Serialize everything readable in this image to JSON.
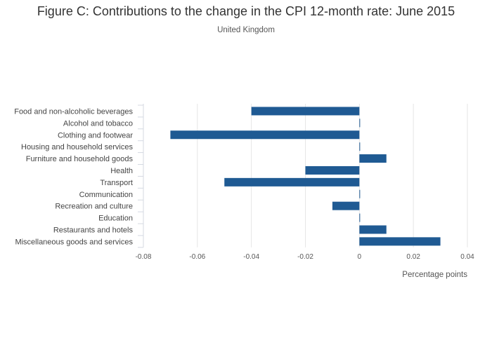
{
  "title": "Figure C: Contributions to the change in the CPI 12-month rate: June 2015",
  "subtitle": "United Kingdom",
  "colors": {
    "bar": "#1f5a93",
    "grid": "#e6e6e6",
    "axis": "#d4d9e2"
  },
  "chart_data": {
    "type": "bar",
    "orientation": "horizontal",
    "categories": [
      "Food and non-alcoholic beverages",
      "Alcohol and tobacco",
      "Clothing and footwear",
      "Housing and household services",
      "Furniture and household goods",
      "Health",
      "Transport",
      "Communication",
      "Recreation and culture",
      "Education",
      "Restaurants and hotels",
      "Miscellaneous goods and services"
    ],
    "values": [
      -0.04,
      0,
      -0.07,
      0,
      0.01,
      -0.02,
      -0.05,
      0,
      -0.01,
      0,
      0.01,
      0.03
    ],
    "xlabel": "Percentage points",
    "ylabel": "",
    "xlim": [
      -0.08,
      0.04
    ],
    "ticks": [
      -0.08,
      -0.06,
      -0.04,
      -0.02,
      0,
      0.02,
      0.04
    ],
    "tick_labels": [
      "-0.08",
      "-0.06",
      "-0.04",
      "-0.02",
      "0",
      "0.02",
      "0.04"
    ],
    "grid": true,
    "legend": "none"
  }
}
